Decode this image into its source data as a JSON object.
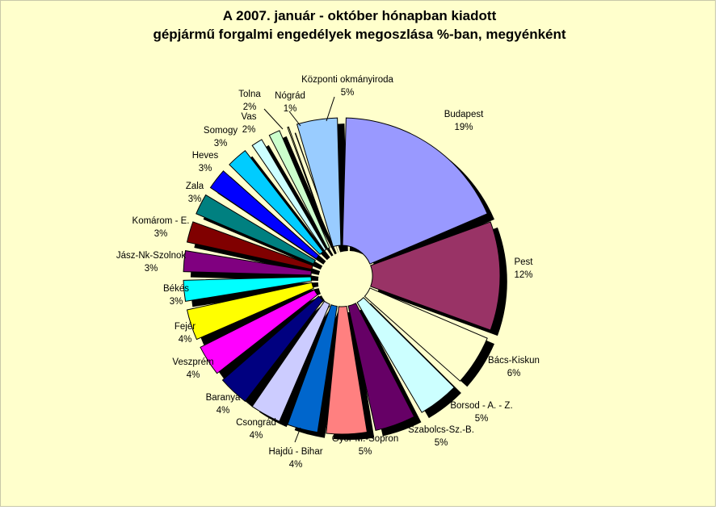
{
  "chart_data": {
    "type": "pie",
    "title_line1": "A  2007. január - október hónapban kiadott",
    "title_line2": "gépjármű forgalmi engedélyek megoszlása %-ban, megyénként",
    "background_color": "#ffffcc",
    "exploded": true,
    "data_labels": "name and percent",
    "slices": [
      {
        "name": "Budapest",
        "label": "19%",
        "value": 19,
        "color": "#9999ff"
      },
      {
        "name": "Pest",
        "label": "12%",
        "value": 12,
        "color": "#993366"
      },
      {
        "name": "Bács-Kiskun",
        "label": "6%",
        "value": 6,
        "color": "#ffffcc"
      },
      {
        "name": "Borsod - A. - Z.",
        "label": "5%",
        "value": 5,
        "color": "#ccffff"
      },
      {
        "name": "Szabolcs-Sz.-B.",
        "label": "5%",
        "value": 5,
        "color": "#660066"
      },
      {
        "name": "Győr-M.-Sopron",
        "label": "5%",
        "value": 5,
        "color": "#ff8080"
      },
      {
        "name": "Hajdú - Bihar",
        "label": "4%",
        "value": 4,
        "color": "#0066cc"
      },
      {
        "name": "Csongrád",
        "label": "4%",
        "value": 4,
        "color": "#ccccff"
      },
      {
        "name": "Baranya",
        "label": "4%",
        "value": 4,
        "color": "#000080"
      },
      {
        "name": "Veszprém",
        "label": "4%",
        "value": 4,
        "color": "#ff00ff"
      },
      {
        "name": "Fejér",
        "label": "4%",
        "value": 4,
        "color": "#ffff00"
      },
      {
        "name": "Békés",
        "label": "3%",
        "value": 3,
        "color": "#00ffff"
      },
      {
        "name": "Jász-Nk-Szolnok",
        "label": "3%",
        "value": 3,
        "color": "#800080"
      },
      {
        "name": "Komárom - E.",
        "label": "3%",
        "value": 3,
        "color": "#800000"
      },
      {
        "name": "Zala",
        "label": "3%",
        "value": 3,
        "color": "#008080"
      },
      {
        "name": "Heves",
        "label": "3%",
        "value": 3,
        "color": "#0000ff"
      },
      {
        "name": "Somogy",
        "label": "3%",
        "value": 3,
        "color": "#00ccff"
      },
      {
        "name": "Vas",
        "label": "2%",
        "value": 2,
        "color": "#ccffff"
      },
      {
        "name": "Tolna",
        "label": "2%",
        "value": 2,
        "color": "#ccffcc"
      },
      {
        "name": "Nógrád",
        "label": "1%",
        "value": 1,
        "color": "#ffff99"
      },
      {
        "name": "Központi okmányiroda",
        "label": "5%",
        "value": 5,
        "color": "#99ccff"
      }
    ]
  }
}
